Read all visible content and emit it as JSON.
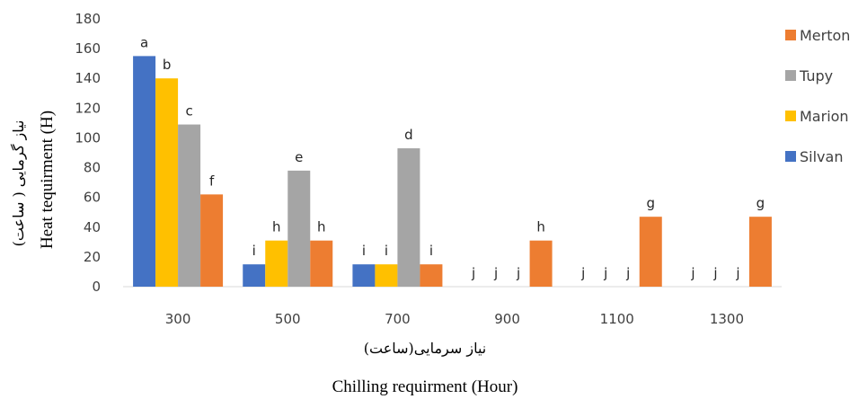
{
  "chart_data": {
    "type": "bar",
    "categories": [
      "300",
      "500",
      "700",
      "900",
      "1100",
      "1300"
    ],
    "series": [
      {
        "name": "Silvan",
        "color": "#4472C4",
        "values": [
          155,
          15,
          15,
          0,
          0,
          0
        ],
        "labels": [
          "a",
          "i",
          "i",
          "j",
          "j",
          "j"
        ]
      },
      {
        "name": "Marion",
        "color": "#FFC000",
        "values": [
          140,
          31,
          15,
          0,
          0,
          0
        ],
        "labels": [
          "b",
          "h",
          "i",
          "j",
          "j",
          "j"
        ]
      },
      {
        "name": "Tupy",
        "color": "#A5A5A5",
        "values": [
          109,
          78,
          93,
          0,
          0,
          0
        ],
        "labels": [
          "c",
          "e",
          "d",
          "j",
          "j",
          "j"
        ]
      },
      {
        "name": "Merton",
        "color": "#ED7D31",
        "values": [
          62,
          31,
          15,
          31,
          47,
          47
        ],
        "labels": [
          "f",
          "h",
          "i",
          "h",
          "g",
          "g"
        ]
      }
    ],
    "ylim": [
      0,
      180
    ],
    "yticks": [
      0,
      20,
      40,
      60,
      80,
      100,
      120,
      140,
      160,
      180
    ],
    "xlabel_fa": "نیاز سرمایی(ساعت)",
    "xlabel_en": "Chilling requirment (Hour)",
    "ylabel_fa": "نیاز گرمایی ( ساعت)",
    "ylabel_en": "Heat tequirment (H)",
    "legend_order": [
      "Merton",
      "Tupy",
      "Marion",
      "Silvan"
    ],
    "legend_position": "right",
    "grid": false
  }
}
